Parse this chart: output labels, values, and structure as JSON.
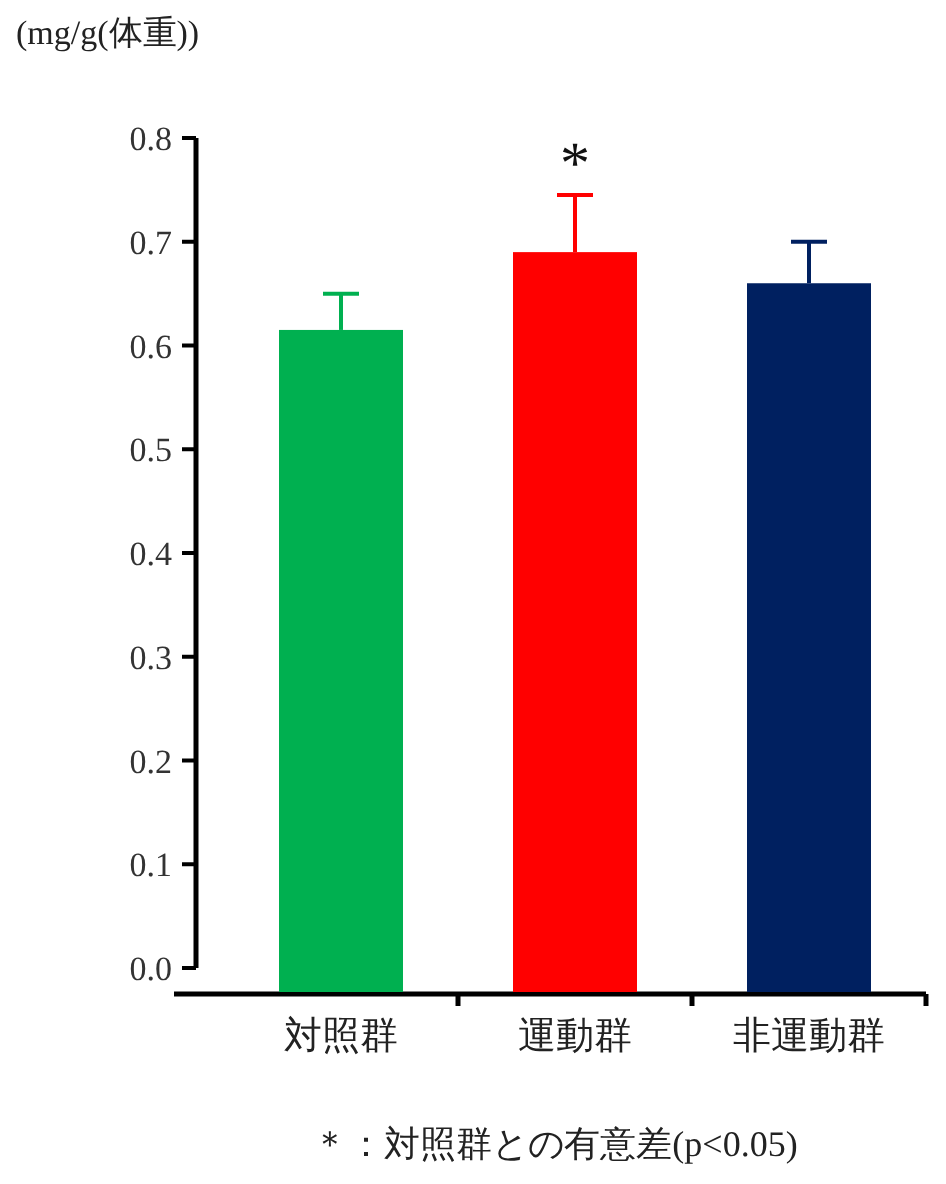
{
  "chart_data": {
    "type": "bar",
    "ylabel": "(mg/g(体重))",
    "categories": [
      "対照群",
      "運動群",
      "非運動群"
    ],
    "values": [
      0.615,
      0.69,
      0.66
    ],
    "colors": [
      "#00b050",
      "#ff0000",
      "#002060"
    ],
    "errors": [
      [
        0.615,
        0.65
      ],
      [
        0.69,
        0.745
      ],
      [
        0.66,
        0.7
      ]
    ],
    "ylim": [
      0,
      0.8
    ],
    "yticks": [
      {
        "value": 0,
        "label": "0.0"
      },
      {
        "value": 0.1,
        "label": "0.1"
      },
      {
        "value": 0.2,
        "label": "0.2"
      },
      {
        "value": 0.3,
        "label": "0.3"
      },
      {
        "value": 0.4,
        "label": "0.4"
      },
      {
        "value": 0.5,
        "label": "0.5"
      },
      {
        "value": 0.6,
        "label": "0.6"
      },
      {
        "value": 0.7,
        "label": "0.7"
      },
      {
        "value": 0.8,
        "label": "0.8"
      }
    ],
    "annotations": [
      {
        "text": "*",
        "x": "運動群",
        "y": 0.745
      },
      "＊：対照群との有意差(p<0.05)"
    ]
  }
}
